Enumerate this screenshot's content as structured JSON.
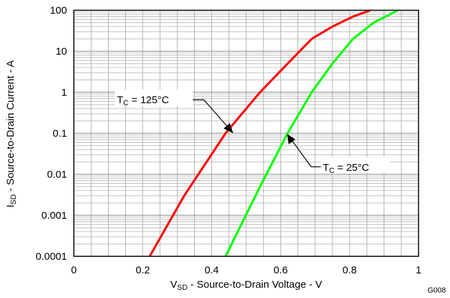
{
  "chart_data": {
    "type": "line",
    "x_scale": "linear",
    "y_scale": "log",
    "xlim": [
      0,
      1
    ],
    "ylim": [
      0.0001,
      100
    ],
    "x_ticks": [
      "0",
      "0.2",
      "0.4",
      "0.6",
      "0.8",
      "1"
    ],
    "y_ticks": [
      "0.0001",
      "0.001",
      "0.01",
      "0.1",
      "1",
      "10",
      "100"
    ],
    "xlabel": {
      "main": "V",
      "sub": "SD",
      "rest": " - Source-to-Drain Voltage - V"
    },
    "ylabel": {
      "main": "I",
      "sub": "SD",
      "rest": " - Source-to-Drain Current - A"
    },
    "grid": true,
    "figure_id": "G008",
    "series": [
      {
        "name": "TC = 125°C",
        "color": "#ff0000",
        "label": {
          "main": "T",
          "sub": "C",
          "rest": " = 125°C"
        },
        "x": [
          0.22,
          0.32,
          0.44,
          0.54,
          0.62,
          0.69,
          0.75,
          0.81,
          0.86
        ],
        "y": [
          0.0001,
          0.003,
          0.1,
          1,
          5,
          20,
          40,
          70,
          100
        ]
      },
      {
        "name": "TC = 25°C",
        "color": "#00ff00",
        "label": {
          "main": "T",
          "sub": "C",
          "rest": " = 25°C"
        },
        "x": [
          0.44,
          0.54,
          0.62,
          0.69,
          0.75,
          0.81,
          0.87,
          0.94
        ],
        "y": [
          0.0001,
          0.005,
          0.1,
          1,
          5,
          20,
          50,
          100
        ]
      }
    ]
  }
}
